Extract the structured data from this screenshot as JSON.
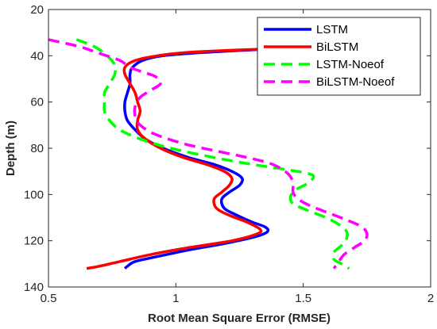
{
  "chart_data": {
    "type": "line",
    "title": "",
    "xlabel": "Root Mean Square Error (RMSE)",
    "ylabel": "Depth (m)",
    "xlim": [
      0.5,
      2
    ],
    "ylim": [
      20,
      140
    ],
    "y_reversed": true,
    "xticks": [
      "0.5",
      "1",
      "1.5",
      "2"
    ],
    "yticks": [
      "20",
      "40",
      "60",
      "80",
      "100",
      "120",
      "140"
    ],
    "grid": false,
    "legend_position": "top-right",
    "series": [
      {
        "name": "LSTM",
        "color": "#0000ff",
        "dash": "solid",
        "points": [
          [
            1.38,
            37
          ],
          [
            1.12,
            38.5
          ],
          [
            0.95,
            40
          ],
          [
            0.87,
            42
          ],
          [
            0.83,
            45
          ],
          [
            0.82,
            48
          ],
          [
            0.82,
            52
          ],
          [
            0.81,
            56
          ],
          [
            0.8,
            60
          ],
          [
            0.8,
            64
          ],
          [
            0.81,
            68
          ],
          [
            0.84,
            72
          ],
          [
            0.88,
            76
          ],
          [
            0.95,
            80
          ],
          [
            1.05,
            84
          ],
          [
            1.15,
            87
          ],
          [
            1.22,
            90
          ],
          [
            1.26,
            93
          ],
          [
            1.25,
            96
          ],
          [
            1.21,
            99
          ],
          [
            1.18,
            102
          ],
          [
            1.19,
            106
          ],
          [
            1.24,
            109
          ],
          [
            1.3,
            112
          ],
          [
            1.35,
            114
          ],
          [
            1.36,
            116
          ],
          [
            1.32,
            118
          ],
          [
            1.2,
            121
          ],
          [
            1.05,
            124
          ],
          [
            0.92,
            127
          ],
          [
            0.84,
            129
          ],
          [
            0.81,
            131
          ],
          [
            0.8,
            132
          ]
        ]
      },
      {
        "name": "BiLSTM",
        "color": "#ff0000",
        "dash": "solid",
        "points": [
          [
            1.37,
            37
          ],
          [
            1.05,
            38.5
          ],
          [
            0.9,
            40.5
          ],
          [
            0.83,
            42.5
          ],
          [
            0.8,
            45
          ],
          [
            0.8,
            48
          ],
          [
            0.82,
            52
          ],
          [
            0.84,
            56
          ],
          [
            0.85,
            60
          ],
          [
            0.86,
            64
          ],
          [
            0.85,
            68
          ],
          [
            0.85,
            72
          ],
          [
            0.88,
            76
          ],
          [
            0.94,
            80
          ],
          [
            1.03,
            84
          ],
          [
            1.12,
            87
          ],
          [
            1.19,
            90
          ],
          [
            1.22,
            93
          ],
          [
            1.21,
            96
          ],
          [
            1.18,
            99
          ],
          [
            1.15,
            102
          ],
          [
            1.16,
            106
          ],
          [
            1.21,
            109
          ],
          [
            1.28,
            112
          ],
          [
            1.33,
            115
          ],
          [
            1.32,
            117
          ],
          [
            1.22,
            120
          ],
          [
            1.05,
            123
          ],
          [
            0.9,
            126
          ],
          [
            0.78,
            129
          ],
          [
            0.7,
            131
          ],
          [
            0.65,
            132
          ]
        ]
      },
      {
        "name": "LSTM-Noeof",
        "color": "#00ff00",
        "dash": "dash",
        "points": [
          [
            0.61,
            33
          ],
          [
            0.68,
            36
          ],
          [
            0.73,
            40
          ],
          [
            0.76,
            44
          ],
          [
            0.76,
            48
          ],
          [
            0.74,
            52
          ],
          [
            0.72,
            56
          ],
          [
            0.72,
            60
          ],
          [
            0.72,
            64
          ],
          [
            0.74,
            68
          ],
          [
            0.78,
            72
          ],
          [
            0.86,
            76
          ],
          [
            0.98,
            80
          ],
          [
            1.15,
            84
          ],
          [
            1.3,
            87
          ],
          [
            1.42,
            89
          ],
          [
            1.5,
            90.5
          ],
          [
            1.54,
            92
          ],
          [
            1.52,
            95
          ],
          [
            1.47,
            98
          ],
          [
            1.45,
            101
          ],
          [
            1.46,
            104
          ],
          [
            1.52,
            107
          ],
          [
            1.59,
            110
          ],
          [
            1.64,
            113
          ],
          [
            1.67,
            116
          ],
          [
            1.67,
            119
          ],
          [
            1.65,
            122
          ],
          [
            1.62,
            125
          ],
          [
            1.62,
            128
          ],
          [
            1.65,
            130
          ],
          [
            1.68,
            132
          ]
        ]
      },
      {
        "name": "BiLSTM-Noeof",
        "color": "#ff00ff",
        "dash": "dash",
        "points": [
          [
            0.5,
            33
          ],
          [
            0.62,
            36
          ],
          [
            0.7,
            39
          ],
          [
            0.78,
            42
          ],
          [
            0.82,
            45
          ],
          [
            0.87,
            47
          ],
          [
            0.92,
            49
          ],
          [
            0.94,
            52
          ],
          [
            0.9,
            55
          ],
          [
            0.86,
            58
          ],
          [
            0.84,
            62
          ],
          [
            0.84,
            66
          ],
          [
            0.86,
            70
          ],
          [
            0.92,
            74
          ],
          [
            1.03,
            78
          ],
          [
            1.15,
            81
          ],
          [
            1.28,
            84
          ],
          [
            1.38,
            87
          ],
          [
            1.44,
            91
          ],
          [
            1.46,
            95
          ],
          [
            1.46,
            99
          ],
          [
            1.48,
            102
          ],
          [
            1.53,
            105
          ],
          [
            1.6,
            108
          ],
          [
            1.67,
            111
          ],
          [
            1.73,
            114
          ],
          [
            1.75,
            117
          ],
          [
            1.74,
            120
          ],
          [
            1.7,
            123
          ],
          [
            1.66,
            126
          ],
          [
            1.64,
            129
          ],
          [
            1.62,
            132
          ]
        ]
      }
    ]
  }
}
